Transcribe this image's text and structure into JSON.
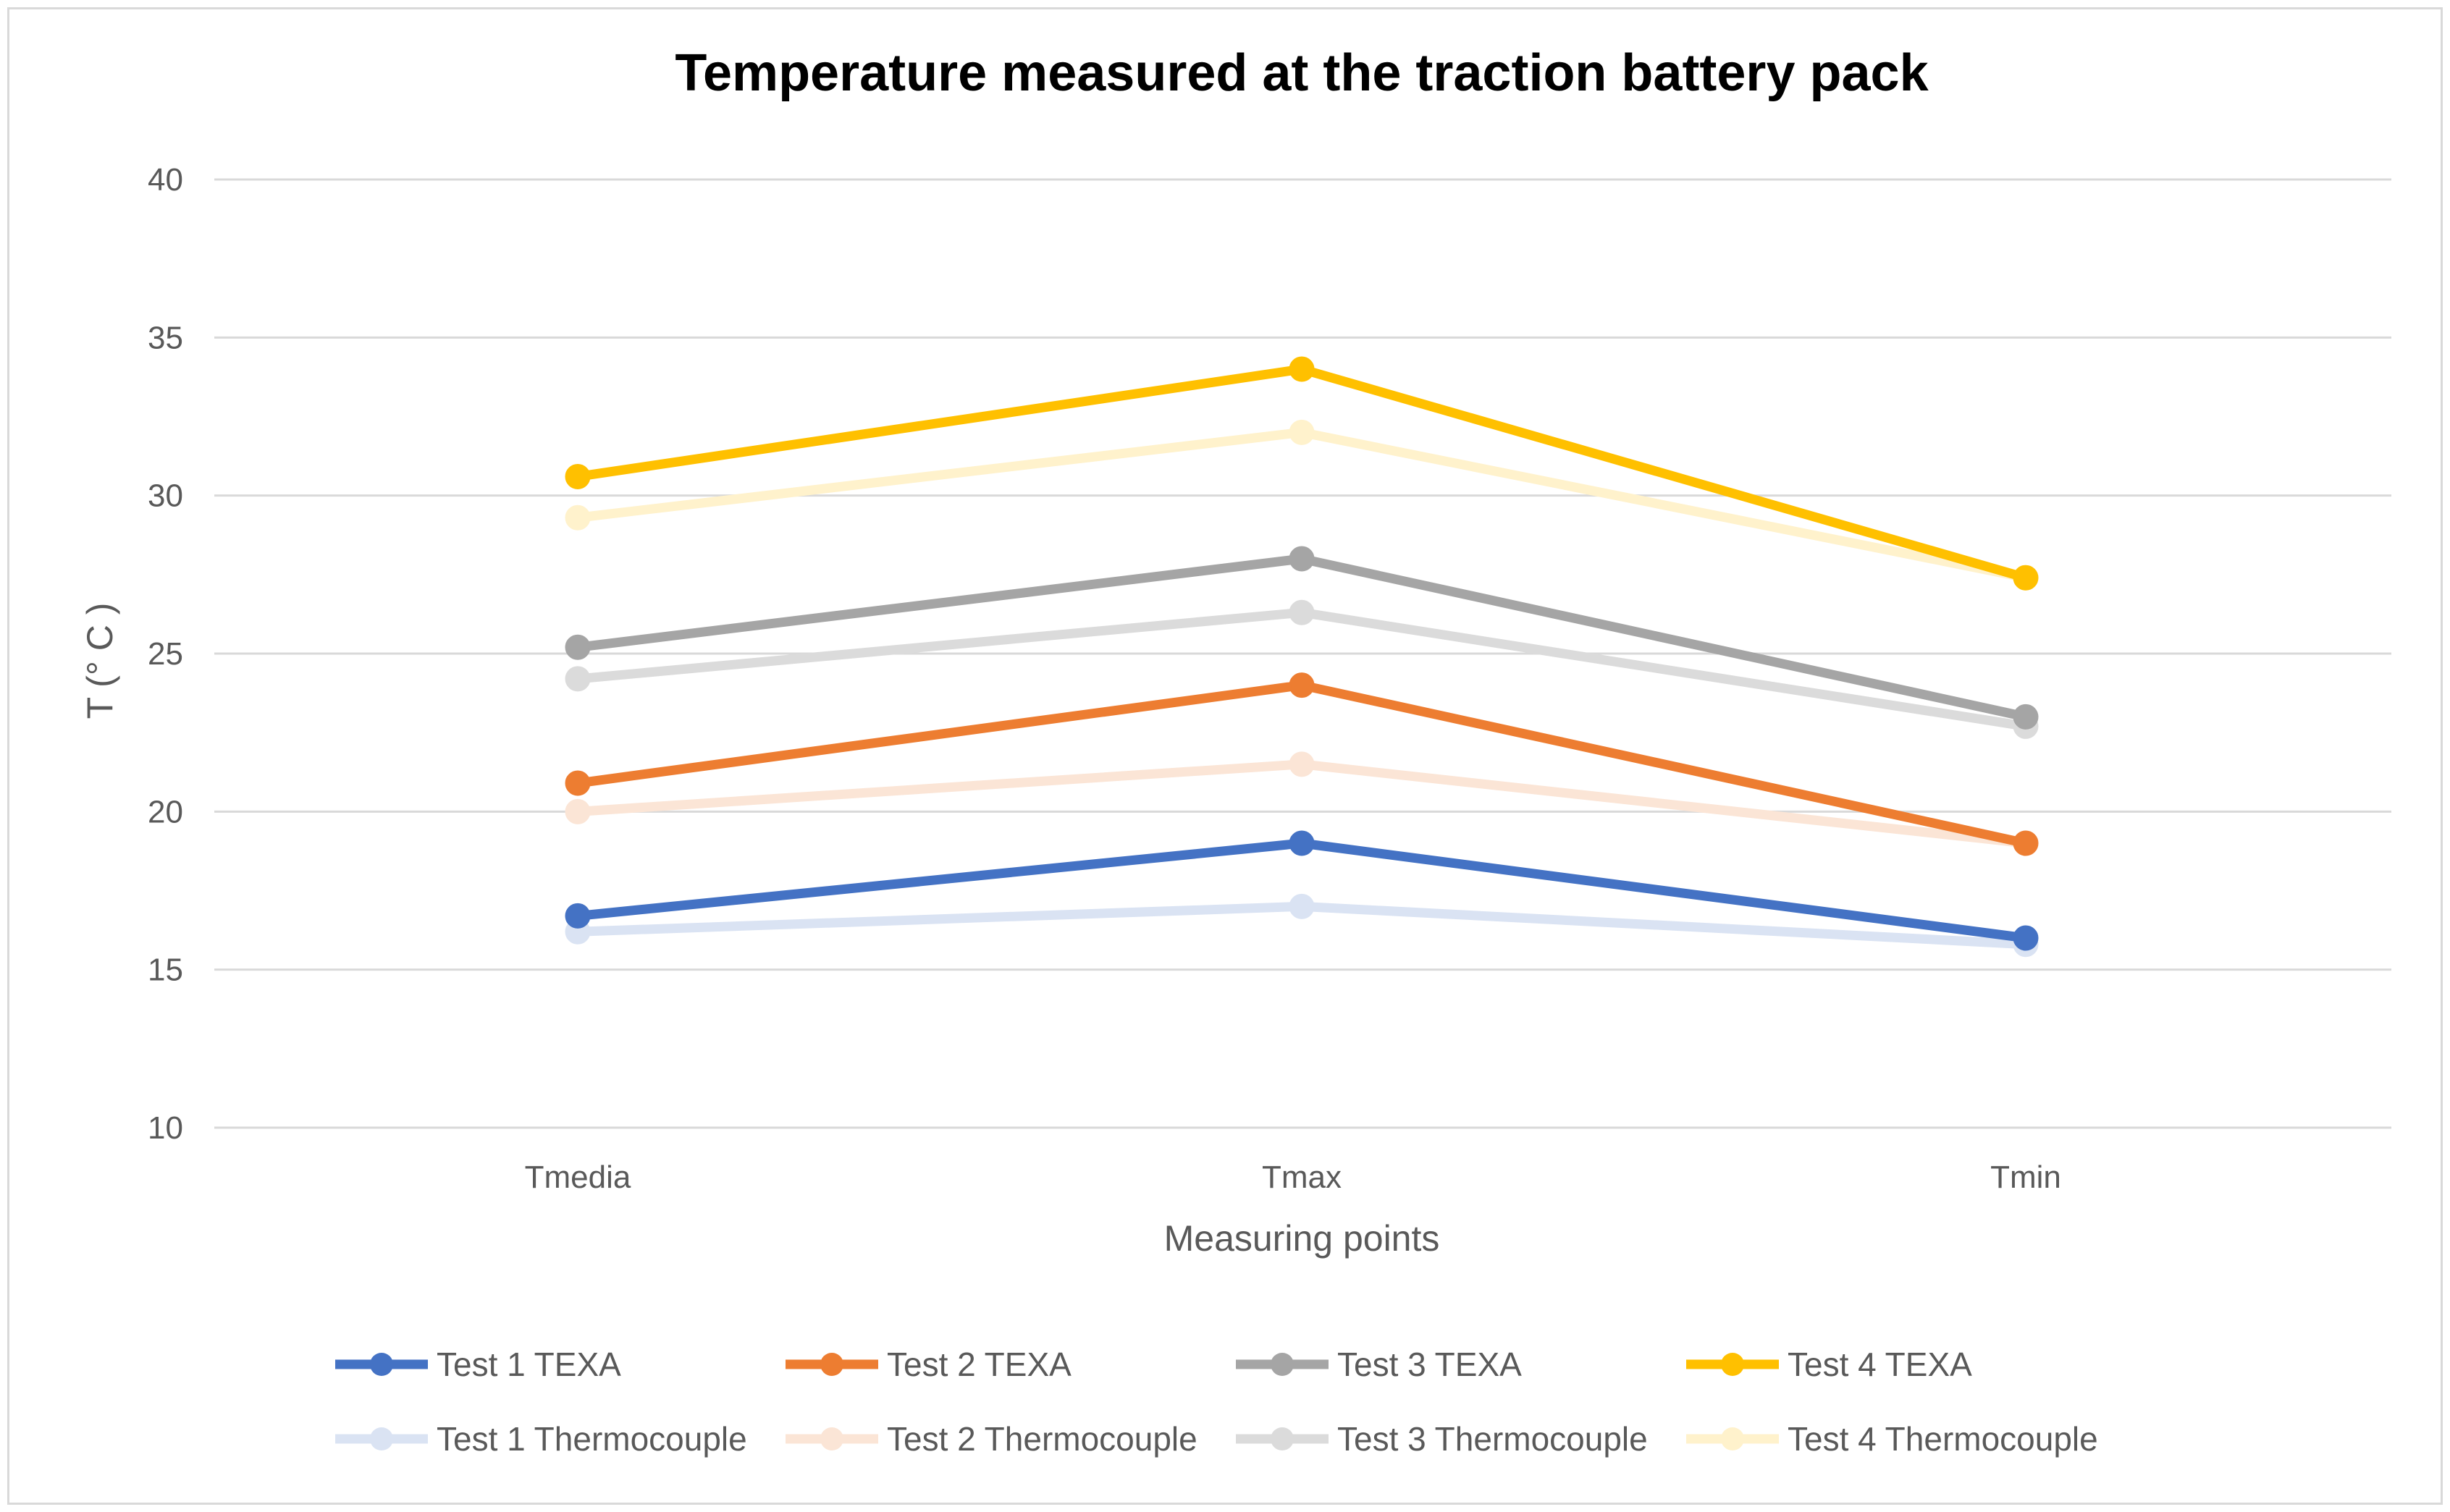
{
  "chart_data": {
    "type": "line",
    "title": "Temperature measured at the traction battery pack",
    "xlabel": "Measuring points",
    "ylabel": "T (° C )",
    "categories": [
      "Tmedia",
      "Tmax",
      "Tmin"
    ],
    "ylim": [
      10,
      40
    ],
    "yticks": [
      10,
      15,
      20,
      25,
      30,
      35,
      40
    ],
    "grid": true,
    "legend_position": "bottom",
    "series": [
      {
        "name": "Test 1 TEXA",
        "color": "#4472c4",
        "values": [
          16.7,
          19.0,
          16.0
        ]
      },
      {
        "name": "Test 2 TEXA",
        "color": "#ed7d31",
        "values": [
          20.9,
          24.0,
          19.0
        ]
      },
      {
        "name": "Test 3 TEXA",
        "color": "#a5a5a5",
        "values": [
          25.2,
          28.0,
          23.0
        ]
      },
      {
        "name": "Test 4 TEXA",
        "color": "#ffc000",
        "values": [
          30.6,
          34.0,
          27.4
        ]
      },
      {
        "name": "Test 1 Thermocouple",
        "color": "#dae3f3",
        "values": [
          16.2,
          17.0,
          15.8
        ]
      },
      {
        "name": "Test 2 Thermocouple",
        "color": "#fbe5d6",
        "values": [
          20.0,
          21.5,
          19.0
        ]
      },
      {
        "name": "Test 3 Thermocouple",
        "color": "#dbdbdb",
        "values": [
          24.2,
          26.3,
          22.7
        ]
      },
      {
        "name": "Test 4 Thermocouple",
        "color": "#fff2cc",
        "values": [
          29.3,
          32.0,
          27.4
        ]
      }
    ]
  }
}
